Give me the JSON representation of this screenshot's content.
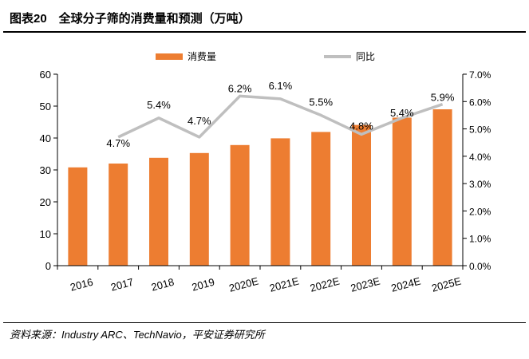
{
  "figure": {
    "title": "图表20　全球分子筛的消费量和预测（万吨）",
    "source": "资料来源：Industry ARC、TechNavio，平安证券研究所"
  },
  "colors": {
    "bar": "#ED7D31",
    "line": "#BFBFBF",
    "axis": "#000000"
  },
  "chart_data": {
    "type": "bar",
    "categories": [
      "2016",
      "2017",
      "2018",
      "2019",
      "2020E",
      "2021E",
      "2022E",
      "2023E",
      "2024E",
      "2025E"
    ],
    "series": [
      {
        "name": "消费量",
        "type": "bar",
        "axis": "left",
        "values": [
          30.8,
          32.0,
          33.8,
          35.3,
          37.8,
          39.9,
          41.9,
          44.1,
          46.4,
          49.0
        ]
      },
      {
        "name": "同比",
        "type": "line",
        "axis": "right",
        "values": [
          null,
          4.7,
          5.4,
          4.7,
          6.2,
          6.1,
          5.5,
          4.8,
          5.4,
          5.9
        ],
        "labels": [
          "",
          "4.7%",
          "5.4%",
          "4.7%",
          "6.2%",
          "6.1%",
          "5.5%",
          "4.8%",
          "5.4%",
          "5.9%"
        ]
      }
    ],
    "ylim": [
      0,
      60
    ],
    "y_ticks": [
      "0",
      "10",
      "20",
      "30",
      "40",
      "50",
      "60"
    ],
    "y2lim": [
      0,
      7
    ],
    "y2_ticks": [
      "0.0%",
      "1.0%",
      "2.0%",
      "3.0%",
      "4.0%",
      "5.0%",
      "6.0%",
      "7.0%"
    ],
    "legend_position": "top-center",
    "grid": false
  }
}
